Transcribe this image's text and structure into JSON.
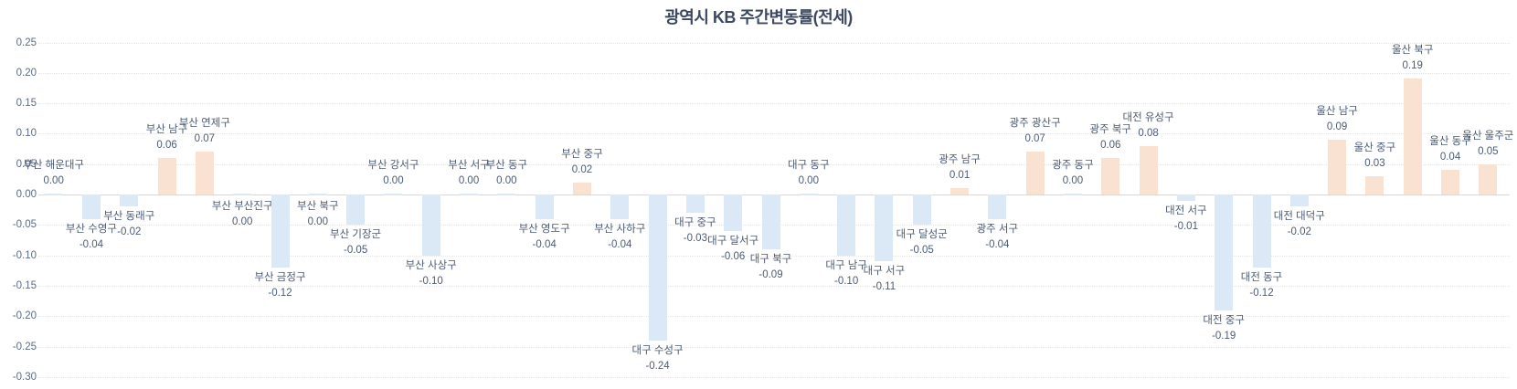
{
  "title": "광역시 KB 주간변동률(전세)",
  "colors": {
    "positive_bar": "#f9e2d1",
    "negative_bar": "#dbe9f6",
    "title_text": "#3d4962",
    "label_text": "#4d5b74",
    "axis_text": "#5d6b84",
    "gridline": "#e3e7ec",
    "zero_line": "#d4d9e0",
    "background": "#ffffff"
  },
  "chart_data": {
    "type": "bar",
    "title": "광역시 KB 주간변동률(전세)",
    "xlabel": "",
    "ylabel": "",
    "ylim": [
      -0.3,
      0.25
    ],
    "ytick_step": 0.05,
    "yticks": [
      "0.25",
      "0.20",
      "0.15",
      "0.10",
      "0.05",
      "0.00",
      "-0.05",
      "-0.10",
      "-0.15",
      "-0.20",
      "-0.25",
      "-0.30"
    ],
    "grid": true,
    "legend_position": "none",
    "value_label_decimals": 2,
    "points": [
      {
        "name": "부산 해운대구",
        "value": 0.0
      },
      {
        "name": "부산 수영구",
        "value": -0.04
      },
      {
        "name": "부산 동래구",
        "value": -0.02
      },
      {
        "name": "부산 남구",
        "value": 0.06
      },
      {
        "name": "부산 연제구",
        "value": 0.07
      },
      {
        "name": "부산 부산진구",
        "value": 0.0,
        "label_below": true
      },
      {
        "name": "부산 금정구",
        "value": -0.12
      },
      {
        "name": "부산 북구",
        "value": 0.0,
        "label_below": true
      },
      {
        "name": "부산 기장군",
        "value": -0.05
      },
      {
        "name": "부산 강서구",
        "value": 0.0
      },
      {
        "name": "부산 사상구",
        "value": -0.1
      },
      {
        "name": "부산 서구",
        "value": 0.0
      },
      {
        "name": "부산 동구",
        "value": 0.0
      },
      {
        "name": "부산 영도구",
        "value": -0.04
      },
      {
        "name": "부산 중구",
        "value": 0.02
      },
      {
        "name": "부산 사하구",
        "value": -0.04
      },
      {
        "name": "대구 수성구",
        "value": -0.24
      },
      {
        "name": "대구 중구",
        "value": -0.03
      },
      {
        "name": "대구 달서구",
        "value": -0.06
      },
      {
        "name": "대구 북구",
        "value": -0.09
      },
      {
        "name": "대구 동구",
        "value": 0.0
      },
      {
        "name": "대구 남구",
        "value": -0.1
      },
      {
        "name": "대구 서구",
        "value": -0.11
      },
      {
        "name": "대구 달성군",
        "value": -0.05
      },
      {
        "name": "광주 남구",
        "value": 0.01
      },
      {
        "name": "광주 서구",
        "value": -0.04
      },
      {
        "name": "광주 광산구",
        "value": 0.07
      },
      {
        "name": "광주 동구",
        "value": 0.0
      },
      {
        "name": "광주 북구",
        "value": 0.06
      },
      {
        "name": "대전 유성구",
        "value": 0.08
      },
      {
        "name": "대전 서구",
        "value": -0.01
      },
      {
        "name": "대전 중구",
        "value": -0.19
      },
      {
        "name": "대전 동구",
        "value": -0.12
      },
      {
        "name": "대전 대덕구",
        "value": -0.02
      },
      {
        "name": "울산 남구",
        "value": 0.09
      },
      {
        "name": "울산 중구",
        "value": 0.03
      },
      {
        "name": "울산 북구",
        "value": 0.19
      },
      {
        "name": "울산 동구",
        "value": 0.04
      },
      {
        "name": "울산 울주군",
        "value": 0.05
      }
    ]
  }
}
